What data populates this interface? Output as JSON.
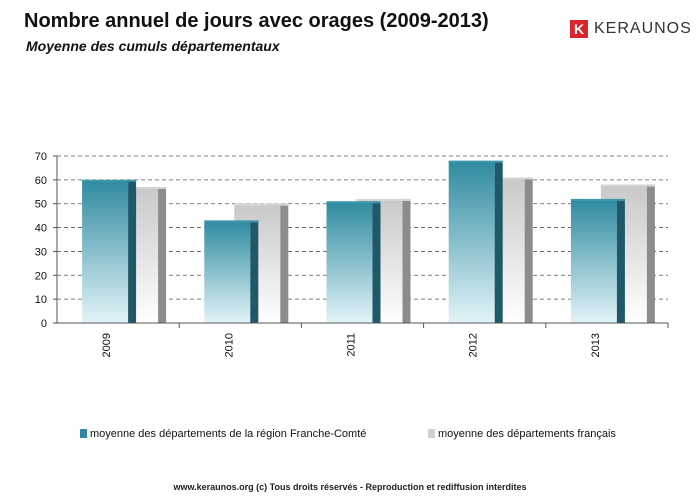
{
  "header": {
    "title": "Nombre annuel de jours avec orages (2009-2013)",
    "subtitle": "Moyenne des cumuls départementaux"
  },
  "logo": {
    "mark": "K",
    "text": "KERAUNOS"
  },
  "footer": {
    "text": "www.keraunos.org  (c) Tous droits réservés - Reproduction et rediffusion interdites"
  },
  "chart_data": {
    "type": "bar",
    "categories": [
      "2009",
      "2010",
      "2011",
      "2012",
      "2013"
    ],
    "series": [
      {
        "name": "moyenne des départements de la région Franche-Comté",
        "values": [
          60,
          43,
          51,
          68,
          52
        ],
        "color": "#2f8aa0"
      },
      {
        "name": "moyenne des départements français",
        "values": [
          57,
          50,
          52,
          61,
          58
        ],
        "color": "#bfbfbf"
      }
    ],
    "ylim": [
      0,
      70
    ],
    "yticks": [
      0,
      10,
      20,
      30,
      40,
      50,
      60,
      70
    ],
    "grid": true,
    "legend": "bottom"
  }
}
